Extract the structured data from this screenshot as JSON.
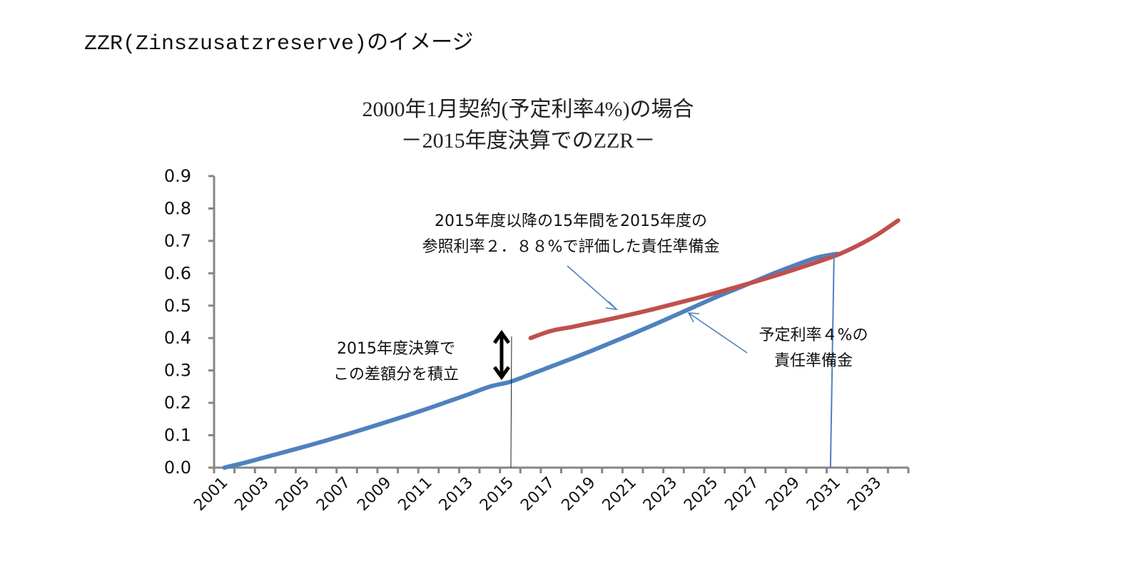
{
  "page": {
    "heading": "ZZR(Zinszusatzreserve)のイメージ"
  },
  "chart_data": {
    "type": "line",
    "title": [
      "2000年1月契約(予定利率4%)の場合",
      "－2015年度決算でのZZR－"
    ],
    "xlabel": "",
    "ylabel": "",
    "ylim": [
      0.0,
      0.9
    ],
    "yticks": [
      "0.0",
      "0.1",
      "0.2",
      "0.3",
      "0.4",
      "0.5",
      "0.6",
      "0.7",
      "0.8",
      "0.9"
    ],
    "x": [
      2001,
      2002,
      2003,
      2004,
      2005,
      2006,
      2007,
      2008,
      2009,
      2010,
      2011,
      2012,
      2013,
      2014,
      2015,
      2016,
      2017,
      2018,
      2019,
      2020,
      2021,
      2022,
      2023,
      2024,
      2025,
      2026,
      2027,
      2028,
      2029,
      2030,
      2031,
      2032,
      2033,
      2034
    ],
    "xtick_labels": [
      "2001",
      "2003",
      "2005",
      "2007",
      "2009",
      "2011",
      "2013",
      "2015",
      "2017",
      "2019",
      "2021",
      "2023",
      "2025",
      "2027",
      "2029",
      "2031",
      "2033"
    ],
    "grid": false,
    "series": [
      {
        "name": "予定利率4%の責任準備金",
        "color": "#4f81bd",
        "x": [
          2001,
          2002,
          2003,
          2004,
          2005,
          2006,
          2007,
          2008,
          2009,
          2010,
          2011,
          2012,
          2013,
          2014,
          2015,
          2016,
          2017,
          2018,
          2019,
          2020,
          2021,
          2022,
          2023,
          2024,
          2025,
          2026,
          2027,
          2028,
          2029,
          2030,
          2031
        ],
        "values": [
          0.0,
          0.015,
          0.032,
          0.049,
          0.066,
          0.084,
          0.103,
          0.122,
          0.142,
          0.162,
          0.183,
          0.205,
          0.227,
          0.25,
          0.265,
          0.288,
          0.312,
          0.336,
          0.361,
          0.387,
          0.413,
          0.44,
          0.468,
          0.496,
          0.524,
          0.55,
          0.576,
          0.602,
          0.626,
          0.648,
          0.66
        ]
      },
      {
        "name": "2015年度以降の15年間を2015年度の参照利率2.88%で評価した責任準備金",
        "color": "#c0504d",
        "x": [
          2016,
          2017,
          2018,
          2019,
          2020,
          2021,
          2022,
          2023,
          2024,
          2025,
          2026,
          2027,
          2028,
          2029,
          2030,
          2031,
          2032,
          2033,
          2034
        ],
        "values": [
          0.4,
          0.422,
          0.434,
          0.447,
          0.46,
          0.474,
          0.489,
          0.505,
          0.521,
          0.538,
          0.556,
          0.574,
          0.593,
          0.613,
          0.634,
          0.656,
          0.685,
          0.72,
          0.763
        ]
      }
    ],
    "annotations": [
      {
        "text": [
          "2015年度以降の15年間を2015年度の",
          "参照利率２．８８%で評価した責任準備金"
        ],
        "points_to": "red-series"
      },
      {
        "text": [
          "予定利率４%の",
          "責任準備金"
        ],
        "points_to": "blue-series"
      },
      {
        "text": [
          "2015年度決算で",
          "この差額分を積立"
        ],
        "points_to": "gap-2015"
      }
    ],
    "markers": {
      "gap_year": 2015,
      "end_year": 2031
    }
  }
}
